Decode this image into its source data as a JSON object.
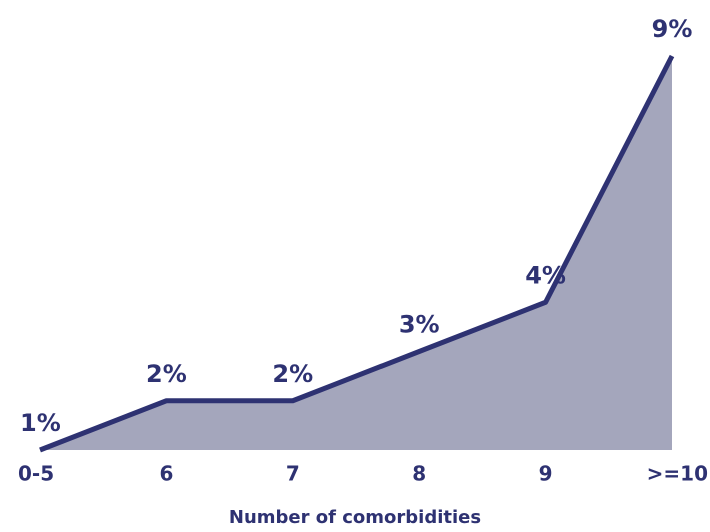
{
  "chart_data": {
    "type": "area",
    "x_label": "Number of comorbidities",
    "categories": [
      "0-5",
      "6",
      "7",
      "8",
      "9",
      ">=10"
    ],
    "values": [
      1,
      2,
      2,
      3,
      4,
      9
    ],
    "value_labels": [
      "1%",
      "2%",
      "2%",
      "3%",
      "4%",
      "9%"
    ],
    "ylim": [
      1,
      9
    ],
    "color": "#2e3272",
    "fill_color": "#a4a6bc"
  }
}
